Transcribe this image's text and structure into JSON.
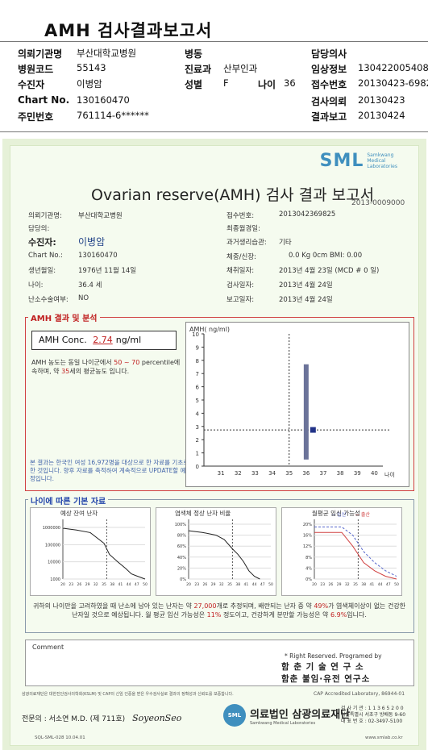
{
  "header": {
    "title": "AMH 검사결과보고서",
    "fields": [
      {
        "label": "의뢰기관명",
        "value": "부산대학교병원"
      },
      {
        "label": "병원코드",
        "value": "55143"
      },
      {
        "label": "수진자",
        "value": "이병암"
      },
      {
        "label": "Chart No.",
        "value": "130160470"
      },
      {
        "label": "주민번호",
        "value": "761114-6******"
      },
      {
        "label": "병동",
        "value": ""
      },
      {
        "label": "진료과",
        "value": "산부인과"
      },
      {
        "label": "성별",
        "value": "F"
      },
      {
        "label": "나이",
        "value": "36"
      },
      {
        "label": "담당의사",
        "value": ""
      },
      {
        "label": "임상정보",
        "value": "130422005408"
      },
      {
        "label": "접수번호",
        "value": "20130423-6982"
      },
      {
        "label": "검사의뢰",
        "value": "20130423"
      },
      {
        "label": "결과보고",
        "value": "20130424"
      }
    ]
  },
  "report": {
    "logo": "SML",
    "logo_sub": [
      "Samkwang",
      "Medical",
      "Laboratories"
    ],
    "title": "Ovarian reserve(AMH) 검사 결과 보고서",
    "code": "2013-0009000",
    "left_info": [
      {
        "label": "의뢰기관명:",
        "value": "부산대학교병원"
      },
      {
        "label": "담당의:",
        "value": ""
      },
      {
        "label": "수진자:",
        "value": "이병암"
      },
      {
        "label": "Chart No.:",
        "value": "130160470"
      },
      {
        "label": "생년월일:",
        "value": "1976년 11월 14일"
      },
      {
        "label": "나이:",
        "value": "36.4 세"
      },
      {
        "label": "난소수술여부:",
        "value": "NO"
      }
    ],
    "right_info": [
      {
        "label": "접수번호:",
        "value": "2013042369825"
      },
      {
        "label": "최종월경일:",
        "value": ""
      },
      {
        "label": "과거생리습관:",
        "value": "기타"
      },
      {
        "label": "체중/신장:",
        "value": "0.0 Kg      0cm   BMI:   0.00"
      },
      {
        "label": "채취일자:",
        "value": "2013년 4월 23일   (MCD # 0 일)"
      },
      {
        "label": "검사일자:",
        "value": "2013년 4월 24일"
      },
      {
        "label": "보고일자:",
        "value": "2013년 4월 24일"
      }
    ],
    "amh_section": {
      "title": "AMH 결과 및 분석",
      "conc_label": "AMH Conc.",
      "conc_value": "2.74",
      "conc_unit": "ng/ml",
      "text_1": "AMH 농도는 동일 나이군에서",
      "pct_range": "50 ~ 70",
      "text_2": "percentile에 속하며, 약",
      "equiv_age": "35",
      "text_3": "세의 평균농도 입니다.",
      "note": "본 결과는 한국인 여성 16,972명을 대상으로 한 자료를 기초로 한 것입니다. 향후 자료를 축적하여 계속적으로 UPDATE할 예정입니다."
    },
    "age_section": {
      "title": "나이에 따른 기본 자료",
      "chart_titles": [
        "예상 잔여 난자",
        "염색체 정상 난자 비율",
        "월평균 임신 가능성"
      ],
      "legend": [
        "임신",
        "출산"
      ],
      "text_a": "귀하의 나이만을 고려하였을 때 난소에 남아 있는 난자는 약",
      "eggs": "27,000",
      "text_b": "개로 추정되며, 배란되는 난자 중 약",
      "normal_pct": "49%",
      "text_c": "가 염색체이상이 없는 건강한 난자일 것으로 예상됩니다. 월 평균 임신 가능성은",
      "preg_pct": "11%",
      "text_d": "정도이고, 건강하게 분만할 가능성은 약",
      "birth_pct": "6.9%",
      "text_e": "입니다."
    },
    "comment_label": "Comment",
    "rights": "* Right Reserved. Programed by",
    "inst_1": "함 춘 기 술 연 구 소",
    "inst_2": "함춘 불임·유전 연구소",
    "footnote": "삼광의료재단은 대한진단검사의학회(KSLM) 및 CAP의 신임 인증을 받은 우수검사실로 결과의 정확성과 신뢰도를 보증합니다.",
    "cap": "CAP  Accredited  Laboratory, 86944-01",
    "doctor": "전문의 : 서소연 M.D. (제 711호)",
    "signature": "SoyeonSeo",
    "foundation": "의료법인 삼광의료재단",
    "foundation_sub": "Samkwang Medical Laboratories",
    "contact": [
      "검 사 기 관 : 1 1 3 6 5 2 0 0",
      "서울특별시 서초구 방배동 9-60",
      "대 표 번 호 : 02-3497-5100"
    ],
    "bottom_code": "SQL-SML-028   10.04.01",
    "bottom_url": "www.smlab.co.kr"
  },
  "chart_data": [
    {
      "type": "scatter",
      "title": "",
      "ylabel": "AMH( ng/ml)",
      "xlabel": "나이",
      "x_ticks": [
        31,
        32,
        33,
        34,
        35,
        36,
        37,
        38,
        39,
        40
      ],
      "y_ticks": [
        0,
        1,
        2,
        3,
        4,
        5,
        6,
        7,
        8,
        9,
        10
      ],
      "xlim": [
        30,
        40.5
      ],
      "ylim": [
        0,
        10
      ],
      "range_bar": {
        "x": 36,
        "low": 0.5,
        "high": 7.7
      },
      "patient_point": {
        "x": 36.4,
        "y": 2.74
      },
      "guide_lines": {
        "age": 35,
        "value": 2.74
      }
    },
    {
      "type": "line",
      "title": "예상 잔여 난자",
      "x": [
        20,
        25,
        30,
        35,
        37,
        40,
        43,
        45,
        47,
        50
      ],
      "y": [
        900000,
        700000,
        500000,
        120000,
        27000,
        10000,
        4000,
        2000,
        1500,
        1000
      ],
      "y_ticks": [
        "1000000",
        "100000",
        "10000",
        "1000"
      ],
      "x_ticks": [
        20,
        23,
        26,
        29,
        32,
        35,
        38,
        41,
        44,
        47,
        50
      ],
      "log_y": true,
      "marker_age": 36
    },
    {
      "type": "line",
      "title": "염색체 정상 난자 비율",
      "x": [
        20,
        25,
        30,
        33,
        36,
        38,
        40,
        42,
        44,
        46
      ],
      "y": [
        88,
        85,
        80,
        72,
        55,
        45,
        32,
        15,
        5,
        0
      ],
      "y_ticks": [
        "100%",
        "80%",
        "60%",
        "40%",
        "20%",
        "0%"
      ],
      "x_ticks": [
        20,
        23,
        26,
        29,
        32,
        35,
        38,
        41,
        44,
        47,
        50
      ],
      "marker_age": 36
    },
    {
      "type": "line",
      "title": "월평균 임신 가능성",
      "x_ticks": [
        20,
        23,
        26,
        29,
        32,
        35,
        38,
        41,
        44,
        47,
        50
      ],
      "y_ticks": [
        "20%",
        "16%",
        "12%",
        "8%",
        "4%",
        "0%"
      ],
      "series": [
        {
          "name": "임신",
          "x": [
            20,
            30,
            34,
            38,
            42,
            46,
            50
          ],
          "y": [
            19,
            19,
            16,
            10,
            6,
            3,
            1
          ]
        },
        {
          "name": "출산",
          "x": [
            20,
            30,
            34,
            38,
            42,
            46,
            50
          ],
          "y": [
            17,
            17,
            12,
            6,
            3,
            1,
            0
          ]
        }
      ],
      "marker_age": 36,
      "colors": {
        "임신": "#5566cc",
        "출산": "#d04040"
      }
    }
  ]
}
